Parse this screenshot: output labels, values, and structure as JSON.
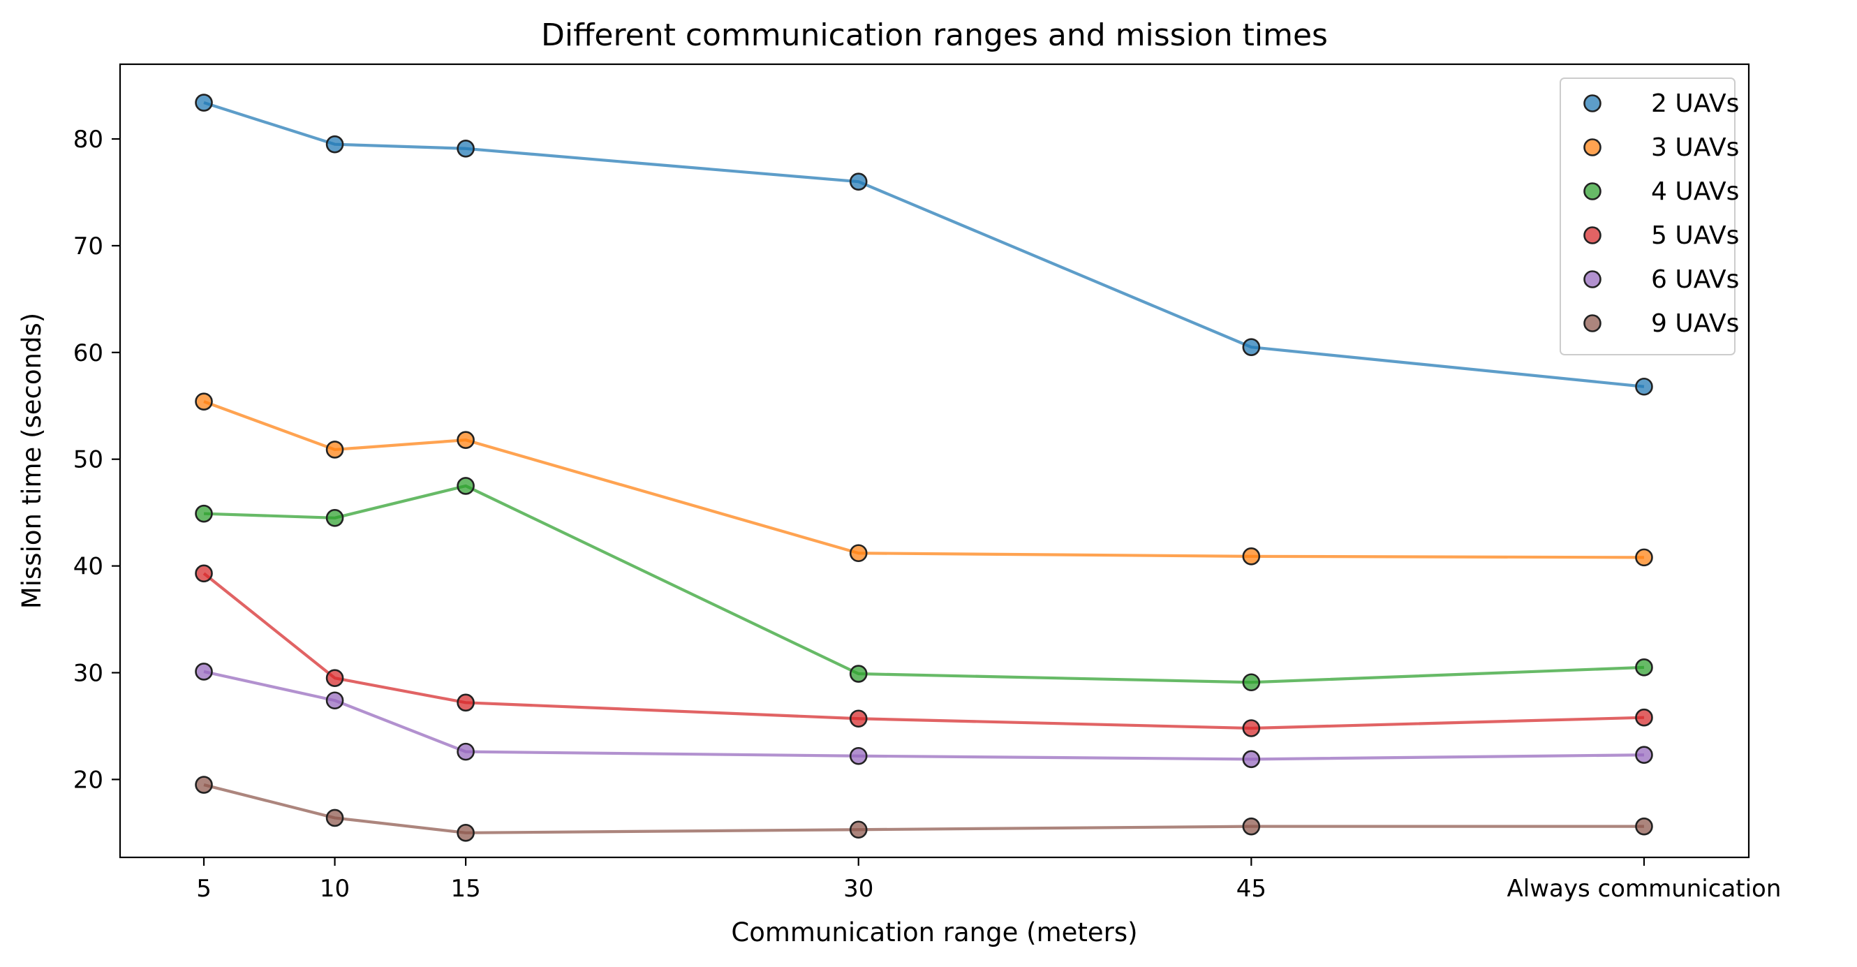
{
  "chart_data": {
    "type": "line",
    "title": "Different communication ranges and mission times",
    "xlabel": "Communication range (meters)",
    "ylabel": "Mission time (seconds)",
    "categories": [
      "5",
      "10",
      "15",
      "30",
      "45",
      "Always communication"
    ],
    "x": [
      5,
      10,
      15,
      30,
      45,
      60
    ],
    "xlim": [
      1.8,
      64
    ],
    "ylim": [
      12.7,
      87.0
    ],
    "yticks": [
      20,
      30,
      40,
      50,
      60,
      70,
      80
    ],
    "grid": false,
    "legend_position": "top-right",
    "series": [
      {
        "name": "2 UAVs",
        "color": "#1f77b4",
        "values": [
          83.4,
          79.5,
          79.1,
          76.0,
          60.5,
          56.8
        ]
      },
      {
        "name": "3 UAVs",
        "color": "#ff7f0e",
        "values": [
          55.4,
          50.9,
          51.8,
          41.2,
          40.9,
          40.8
        ]
      },
      {
        "name": "4 UAVs",
        "color": "#2ca02c",
        "values": [
          44.9,
          44.5,
          47.5,
          29.9,
          29.1,
          30.5
        ]
      },
      {
        "name": "5 UAVs",
        "color": "#d62728",
        "values": [
          39.3,
          29.5,
          27.2,
          25.7,
          24.8,
          25.8
        ]
      },
      {
        "name": "6 UAVs",
        "color": "#9467bd",
        "values": [
          30.1,
          27.4,
          22.6,
          22.2,
          21.9,
          22.3
        ]
      },
      {
        "name": "9 UAVs",
        "color": "#8c564b",
        "values": [
          19.5,
          16.4,
          15.0,
          15.3,
          15.6,
          15.6
        ]
      }
    ]
  }
}
